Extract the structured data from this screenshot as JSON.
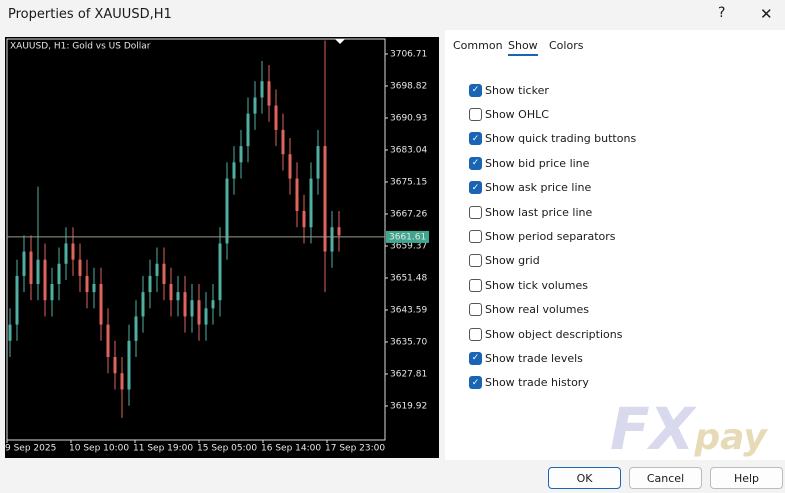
{
  "window": {
    "title": "Properties of XAUUSD,H1",
    "help": "?",
    "close": "✕"
  },
  "tabs": [
    {
      "label": "Common",
      "active": false
    },
    {
      "label": "Show",
      "active": true
    },
    {
      "label": "Colors",
      "active": false
    }
  ],
  "options": [
    {
      "label": "Show ticker",
      "checked": true
    },
    {
      "label": "Show OHLC",
      "checked": false
    },
    {
      "label": "Show quick trading buttons",
      "checked": true
    },
    {
      "label": "Show bid price line",
      "checked": true
    },
    {
      "label": "Show ask price line",
      "checked": true
    },
    {
      "label": "Show last price line",
      "checked": false
    },
    {
      "label": "Show period separators",
      "checked": false
    },
    {
      "label": "Show grid",
      "checked": false
    },
    {
      "label": "Show tick volumes",
      "checked": false
    },
    {
      "label": "Show real volumes",
      "checked": false
    },
    {
      "label": "Show object descriptions",
      "checked": false
    },
    {
      "label": "Show trade levels",
      "checked": true
    },
    {
      "label": "Show trade history",
      "checked": true
    }
  ],
  "buttons": [
    "OK",
    "Cancel",
    "Help"
  ],
  "watermark": {
    "left": "FX",
    "right": "pay"
  },
  "chart_data": {
    "type": "candlestick",
    "title": "XAUUSD, H1:  Gold vs US Dollar",
    "categories": [
      "9 Sep 2025",
      "10 Sep 10:00",
      "11 Sep 19:00",
      "15 Sep 05:00",
      "16 Sep 14:00",
      "17 Sep 23:00"
    ],
    "up_color": "#4fb0a2",
    "down_color": "#e0655d",
    "price_line": 3661.61,
    "price_line_color": "#3fa58e",
    "ylim": [
      3611.54,
      3710.41
    ],
    "yticks": [
      3706.71,
      3698.82,
      3690.93,
      3683.04,
      3675.15,
      3667.26,
      3659.37,
      3651.48,
      3643.59,
      {
        "value": 3635.7,
        "label": "3635.70"
      },
      3627.81,
      3619.92
    ],
    "open": [
      3636,
      3640,
      3652,
      3658,
      3650,
      3656,
      3646,
      3650,
      3655,
      3660,
      3656,
      3652,
      3648,
      3650,
      3640,
      3632,
      3628,
      3624,
      3636,
      3642,
      3648,
      3652,
      3655,
      3650,
      3646,
      3648,
      3642,
      3646,
      3640,
      3644,
      3646,
      3660,
      3676,
      3680,
      3684,
      3692,
      3696,
      3700,
      3694,
      3688,
      3682,
      3676,
      3668,
      3664,
      3676,
      3684,
      3658,
      3664
    ],
    "high": [
      3644,
      3656,
      3662,
      3662,
      3674,
      3660,
      3654,
      3659,
      3664,
      3664,
      3660,
      3656,
      3654,
      3654,
      3644,
      3636,
      3632,
      3640,
      3646,
      3652,
      3656,
      3659,
      3659,
      3654,
      3652,
      3652,
      3650,
      3650,
      3648,
      3650,
      3664,
      3680,
      3684,
      3688,
      3696,
      3700,
      3705,
      3704,
      3698,
      3692,
      3686,
      3680,
      3672,
      3680,
      3688,
      3710,
      3668,
      3668
    ],
    "low": [
      3632,
      3636,
      3648,
      3646,
      3646,
      3642,
      3642,
      3646,
      3651,
      3652,
      3648,
      3644,
      3644,
      3636,
      3628,
      3624,
      3617,
      3620,
      3632,
      3638,
      3644,
      3648,
      3646,
      3642,
      3642,
      3638,
      3638,
      3636,
      3636,
      3640,
      3642,
      3656,
      3672,
      3676,
      3680,
      3688,
      3692,
      3690,
      3684,
      3678,
      3672,
      3664,
      3660,
      3660,
      3672,
      3648,
      3654,
      3658
    ],
    "close": [
      3640,
      3652,
      3658,
      3650,
      3656,
      3646,
      3650,
      3655,
      3660,
      3656,
      3652,
      3648,
      3650,
      3640,
      3632,
      3628,
      3624,
      3636,
      3642,
      3648,
      3652,
      3655,
      3650,
      3646,
      3648,
      3642,
      3646,
      3640,
      3644,
      3646,
      3660,
      3676,
      3680,
      3684,
      3692,
      3696,
      3700,
      3694,
      3688,
      3682,
      3676,
      3668,
      3664,
      3676,
      3684,
      3658,
      3664,
      3662
    ]
  }
}
